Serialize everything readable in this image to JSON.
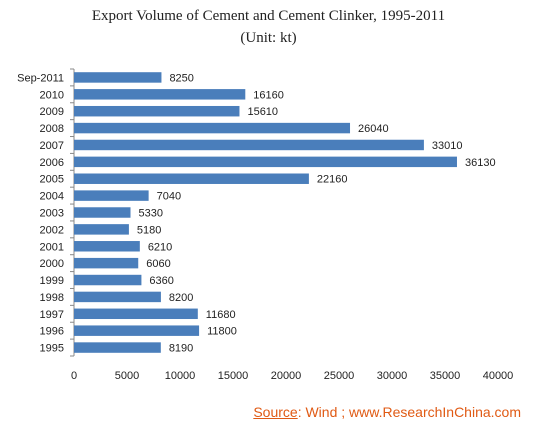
{
  "title": "Export Volume of Cement and Cement Clinker, 1995-2011",
  "subtitle": "(Unit: kt)",
  "source": {
    "label": "Source",
    "text": ": Wind ; www.ResearchInChina.com"
  },
  "chart_data": {
    "type": "bar",
    "orientation": "horizontal",
    "categories": [
      "Sep-2011",
      "2010",
      "2009",
      "2008",
      "2007",
      "2006",
      "2005",
      "2004",
      "2003",
      "2002",
      "2001",
      "2000",
      "1999",
      "1998",
      "1997",
      "1996",
      "1995"
    ],
    "values": [
      8250,
      16160,
      15610,
      26040,
      33010,
      36130,
      22160,
      7040,
      5330,
      5180,
      6210,
      6060,
      6360,
      8200,
      11680,
      11800,
      8190
    ],
    "xlim": [
      0,
      40000
    ],
    "xticks": [
      "0",
      "5000",
      "10000",
      "15000",
      "20000",
      "25000",
      "30000",
      "35000",
      "40000"
    ],
    "data_labels": true,
    "bar_color": "#4a7ebb",
    "grid": false
  }
}
